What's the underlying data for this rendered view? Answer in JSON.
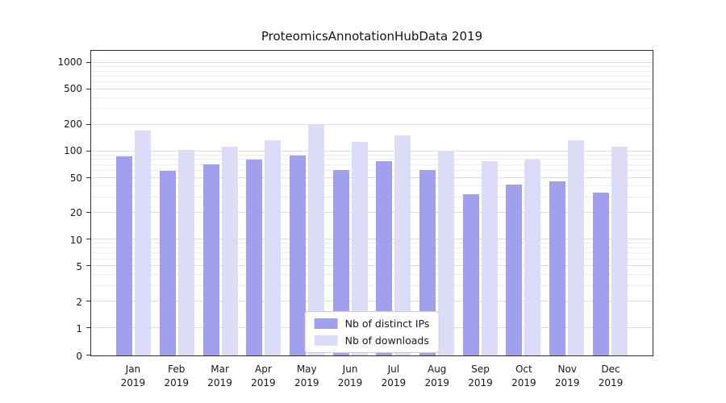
{
  "title": "ProteomicsAnnotationHubData 2019",
  "chart_data": {
    "type": "bar",
    "scale": "symlog",
    "grid": true,
    "legend_position": "lower center",
    "categories": [
      "Jan",
      "Feb",
      "Mar",
      "Apr",
      "May",
      "Jun",
      "Jul",
      "Aug",
      "Sep",
      "Oct",
      "Nov",
      "Dec"
    ],
    "year_label": "2019",
    "yticks": [
      1000,
      500,
      200,
      100,
      50,
      20,
      10,
      5,
      2,
      1,
      0
    ],
    "ylim": [
      0,
      1400
    ],
    "series": [
      {
        "name": "Nb of distinct IPs",
        "color": "#a0a0ef",
        "values": [
          88,
          60,
          71,
          80,
          90,
          62,
          77,
          62,
          33,
          42,
          46,
          34
        ]
      },
      {
        "name": "Nb of downloads",
        "color": "#dcdcf9",
        "values": [
          170,
          104,
          113,
          133,
          205,
          128,
          152,
          102,
          78,
          80,
          133,
          113
        ]
      }
    ]
  }
}
